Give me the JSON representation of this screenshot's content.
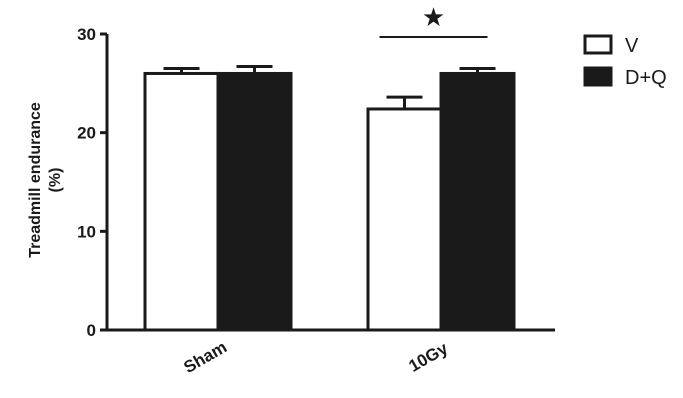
{
  "chart_data": {
    "type": "bar",
    "categories": [
      "Sham",
      "10Gy"
    ],
    "series": [
      {
        "name": "V",
        "values": [
          26.0,
          22.4
        ],
        "errors": [
          0.5,
          1.2
        ],
        "color": "#ffffff"
      },
      {
        "name": "D+Q",
        "values": [
          26.0,
          26.0
        ],
        "errors": [
          0.7,
          0.5
        ],
        "color": "#1a1a1a"
      }
    ],
    "ylabel_line1": "Treadmill endurance",
    "ylabel_line2": "(%)",
    "yticks": [
      0,
      10,
      20,
      30
    ],
    "ylim": [
      0,
      30
    ],
    "legend_position": "top-right",
    "significance": {
      "category": "10Gy",
      "symbol": "★"
    },
    "grid": false
  }
}
